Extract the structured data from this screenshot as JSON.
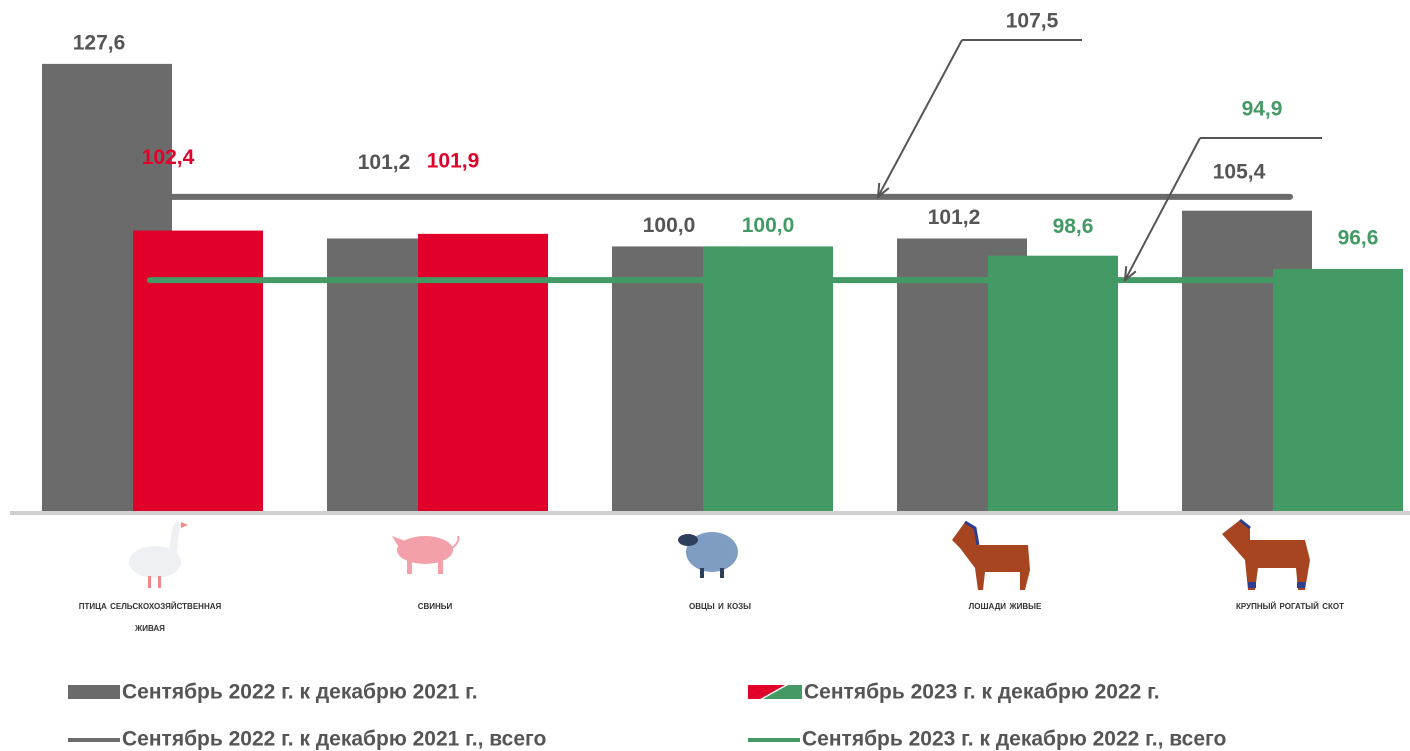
{
  "chart_data": {
    "type": "bar",
    "categories": [
      "Птица сельскохозяйственная живая",
      "Свиньи",
      "Овцы и козы",
      "Лошади живые",
      "Крупный рогатый скот"
    ],
    "ylim": [
      60,
      130
    ],
    "series": [
      {
        "name": "Сентябрь 2022 г. к декабрю 2021 г.",
        "color": "#6b6b6b",
        "values": [
          127.6,
          101.2,
          100.0,
          101.2,
          105.4
        ],
        "value_labels": [
          "127,6",
          "101,2",
          "100,0",
          "101,2",
          "105,4"
        ]
      },
      {
        "name": "Сентябрь 2023 г. к декабрю 2022 г.",
        "colors": [
          "#e0002a",
          "#e0002a",
          "#439a64",
          "#439a64",
          "#439a64"
        ],
        "values": [
          102.4,
          101.9,
          100.0,
          98.6,
          96.6
        ],
        "value_labels": [
          "102,4",
          "101,9",
          "100,0",
          "98,6",
          "96,6"
        ]
      }
    ],
    "reference_lines": [
      {
        "name": "Сентябрь 2022 г. к декабрю 2021 г., всего",
        "color": "#6b6b6b",
        "value": 107.5,
        "value_label": "107,5"
      },
      {
        "name": "Сентябрь 2023 г. к декабрю 2022 г., всего",
        "color": "#439a64",
        "value": 94.9,
        "value_label": "94,9"
      }
    ]
  }
}
